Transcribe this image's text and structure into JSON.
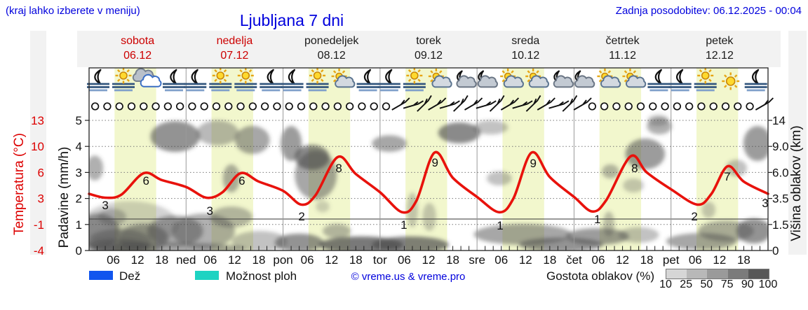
{
  "header": {
    "hint": "(kraj lahko izberete v meniju)",
    "title": "Ljubljana 7 dni",
    "updated": "Zadnja posodobitev: 06.12.2025 - 00:04"
  },
  "colors": {
    "link_blue": "#0000dd",
    "day_red": "#cc0000",
    "day_black": "#1a1a1a",
    "temp_axis_red": "#dd0000",
    "curve_red": "#e8120c",
    "daylight_band": "#f2f7cd",
    "rain_blue": "#1155ee",
    "showers_cyan": "#1ed3c2",
    "cloud_grays": [
      "#d6d6d6",
      "#b8b8b8",
      "#9a9a9a",
      "#7b7b7b",
      "#585858"
    ]
  },
  "days": [
    {
      "name": "sobota",
      "date": "06.12",
      "red": true
    },
    {
      "name": "nedelja",
      "date": "07.12",
      "red": true
    },
    {
      "name": "ponedeljek",
      "date": "08.12",
      "red": false
    },
    {
      "name": "torek",
      "date": "09.12",
      "red": false
    },
    {
      "name": "sreda",
      "date": "10.12",
      "red": false
    },
    {
      "name": "četrtek",
      "date": "11.12",
      "red": false
    },
    {
      "name": "petek",
      "date": "12.12",
      "red": false
    }
  ],
  "axes": {
    "temp_title": "Temperatura (°C)",
    "temp_ticks": [
      "13",
      "10",
      "6",
      "3",
      "-1",
      "-4"
    ],
    "precip_title": "Padavine (mm/h)",
    "precip_ticks": [
      "5",
      "4",
      "3",
      "2",
      "1",
      "0"
    ],
    "cloud_title": "Višina oblakov (km)",
    "cloud_ticks": [
      "14",
      "9.0",
      "6.0",
      "3.5",
      "1.5",
      "0"
    ],
    "hour_labels": [
      "06",
      "12",
      "18"
    ],
    "day_abbrevs": [
      "ned",
      "pon",
      "tor",
      "sre",
      "čet",
      "pet"
    ]
  },
  "legend": {
    "rain": "Dež",
    "showers": "Možnost ploh",
    "copyright": "© vreme.us & vreme.pro",
    "cloud_density": "Gostota oblakov (%)",
    "scale_values": [
      "10",
      "25",
      "50",
      "75",
      "90",
      "100"
    ]
  },
  "chart_data": {
    "type": "line",
    "title": "Ljubljana 7 dni",
    "x_range_hours": [
      0,
      168
    ],
    "x_axis": "čas (ure po dnevih: 06/12/18)",
    "ylabel_left": "Padavine (mm/h) 0-5 / Temperatura (°C) -4..13",
    "ylabel_right": "Višina oblakov (km), neenakomerna skala 0,1.5,3.5,6.0,9.0,14",
    "daylight_hours": [
      6.3,
      16.6
    ],
    "reference_line_u": 1.21,
    "temperature_c": {
      "name": "Temperatura (°C)",
      "points": [
        [
          0,
          3.4
        ],
        [
          4,
          2.9
        ],
        [
          8,
          3.3
        ],
        [
          13.5,
          6.1
        ],
        [
          18,
          5.2
        ],
        [
          24,
          4.3
        ],
        [
          29,
          2.9
        ],
        [
          33,
          3.6
        ],
        [
          37.5,
          6.1
        ],
        [
          42,
          5.0
        ],
        [
          48,
          3.8
        ],
        [
          52.5,
          2.0
        ],
        [
          56,
          3.2
        ],
        [
          61.5,
          8.2
        ],
        [
          66,
          6.0
        ],
        [
          72,
          3.6
        ],
        [
          77.5,
          1.0
        ],
        [
          81,
          2.5
        ],
        [
          85.5,
          8.8
        ],
        [
          90,
          5.5
        ],
        [
          96,
          3.0
        ],
        [
          101.5,
          1.0
        ],
        [
          105,
          2.8
        ],
        [
          109.5,
          8.8
        ],
        [
          114,
          5.6
        ],
        [
          120,
          3.0
        ],
        [
          124.5,
          1.1
        ],
        [
          128,
          2.6
        ],
        [
          134,
          8.3
        ],
        [
          138,
          6.2
        ],
        [
          144,
          4.0
        ],
        [
          150.5,
          2.0
        ],
        [
          154,
          3.4
        ],
        [
          158,
          7.0
        ],
        [
          162,
          5.0
        ],
        [
          168,
          3.4
        ]
      ]
    },
    "temp_point_labels": [
      [
        4.0,
        1.75,
        "3"
      ],
      [
        14.1,
        2.69,
        "6"
      ],
      [
        29.9,
        1.53,
        "3"
      ],
      [
        37.8,
        2.69,
        "6"
      ],
      [
        52.6,
        1.32,
        "2"
      ],
      [
        61.8,
        3.17,
        "8"
      ],
      [
        77.9,
        0.99,
        "1"
      ],
      [
        85.6,
        3.39,
        "9"
      ],
      [
        101.7,
        0.97,
        "1"
      ],
      [
        109.9,
        3.36,
        "9"
      ],
      [
        125.8,
        1.21,
        "1"
      ],
      [
        135.0,
        3.17,
        "8"
      ],
      [
        149.8,
        1.32,
        "2"
      ],
      [
        157.9,
        2.85,
        "7"
      ],
      [
        167.3,
        1.83,
        "3"
      ]
    ],
    "cloud_cover_blobs": [
      [
        2.3,
        0.75,
        5.2,
        0.67,
        0.55
      ],
      [
        7.5,
        0.35,
        7.8,
        0.48,
        0.45
      ],
      [
        13.5,
        0.48,
        6.1,
        0.54,
        0.5
      ],
      [
        21.3,
        0.75,
        6.9,
        0.59,
        0.5
      ],
      [
        5.7,
        1.29,
        3.5,
        0.32,
        0.35
      ],
      [
        1.4,
        3.17,
        2.1,
        0.48,
        0.45
      ],
      [
        21.3,
        4.38,
        6.1,
        0.59,
        0.6
      ],
      [
        31.8,
        4.52,
        5.2,
        0.48,
        0.4
      ],
      [
        40.4,
        4.25,
        4.3,
        0.54,
        0.5
      ],
      [
        50,
        4.11,
        2.6,
        0.67,
        0.55
      ],
      [
        35.2,
        2.77,
        2.1,
        0.54,
        0.45
      ],
      [
        28.3,
        0.75,
        7.8,
        0.67,
        0.45
      ],
      [
        35.2,
        1.29,
        5.2,
        0.4,
        0.4
      ],
      [
        42.2,
        0.35,
        6.9,
        0.4,
        0.35
      ],
      [
        57.8,
        1.69,
        1.7,
        0.22,
        0.25
      ],
      [
        56.1,
        2.9,
        5.2,
        0.94,
        0.5
      ],
      [
        55.2,
        3.58,
        4.3,
        0.48,
        0.65
      ],
      [
        67.3,
        0.22,
        10.4,
        0.32,
        0.75
      ],
      [
        79.5,
        0.22,
        9.5,
        0.32,
        0.7
      ],
      [
        61.3,
        0.75,
        3.5,
        0.27,
        0.4
      ],
      [
        74.3,
        4.11,
        4.3,
        0.32,
        0.5
      ],
      [
        80,
        1.56,
        1.4,
        0.67,
        0.3
      ],
      [
        91.6,
        4.52,
        5.2,
        0.4,
        0.65
      ],
      [
        99.4,
        4.73,
        4.3,
        0.27,
        0.35
      ],
      [
        84.2,
        1.29,
        1.7,
        0.54,
        0.3
      ],
      [
        107.3,
        0.62,
        12.1,
        0.4,
        0.5
      ],
      [
        116.8,
        0.22,
        10.4,
        0.27,
        0.6
      ],
      [
        101.5,
        2.77,
        3.1,
        0.27,
        0.35
      ],
      [
        129,
        3.04,
        2.1,
        0.27,
        0.4
      ],
      [
        125.8,
        0.54,
        7.8,
        0.32,
        0.55
      ],
      [
        137.6,
        3.71,
        4.9,
        0.59,
        0.55
      ],
      [
        141.1,
        4.78,
        3.1,
        0.32,
        0.45
      ],
      [
        134.7,
        2.5,
        2.6,
        0.27,
        0.3
      ],
      [
        128.6,
        1.02,
        1.4,
        0.48,
        0.35
      ],
      [
        151.5,
        0.35,
        8.7,
        0.32,
        0.5
      ],
      [
        157.6,
        0.75,
        6.9,
        0.4,
        0.45
      ],
      [
        164.5,
        0.75,
        4.3,
        0.48,
        0.6
      ],
      [
        153.3,
        1.56,
        1.7,
        0.32,
        0.3
      ],
      [
        165.4,
        4.11,
        3.5,
        0.67,
        0.55
      ],
      [
        160.2,
        3.17,
        2.6,
        0.32,
        0.35
      ],
      [
        140.8,
        5,
        2.6,
        0.22,
        0.3
      ],
      [
        19.6,
        0.08,
        19.1,
        0.22,
        0.5
      ],
      [
        10,
        1,
        12,
        0.9,
        0.25
      ],
      [
        52,
        0.3,
        6,
        0.35,
        0.6
      ],
      [
        7,
        0.15,
        8,
        0.3,
        0.55
      ],
      [
        136,
        0.6,
        5,
        0.3,
        0.35
      ]
    ],
    "weather_icons": [
      "moon-fog",
      "sun-fog",
      "cloudy",
      "moon-fog",
      "moon-fog",
      "sun-fog",
      "sun-fog",
      "moon-fog",
      "moon-fog",
      "sun-fog",
      "sun-cloud",
      "moon-fog",
      "moon-fog",
      "sun-fog",
      "sun-cloud",
      "moon-cloud",
      "moon-cloud",
      "sun-cloud",
      "sun-cloud",
      "moon-cloud",
      "moon-cloud",
      "sun-cloud",
      "sun-cloud",
      "moon-fog",
      "moon-fog",
      "sun-fog",
      "sun",
      "moon-fog"
    ],
    "wind_symbols": {
      "spacing_hours": 3,
      "segments": [
        {
          "from": 0,
          "to": 75,
          "type": "calm"
        },
        {
          "from": 75,
          "to": 123,
          "type": "barb"
        },
        {
          "from": 123,
          "to": 164,
          "type": "calm"
        },
        {
          "from": 164,
          "to": 168,
          "type": "barb"
        }
      ]
    }
  }
}
